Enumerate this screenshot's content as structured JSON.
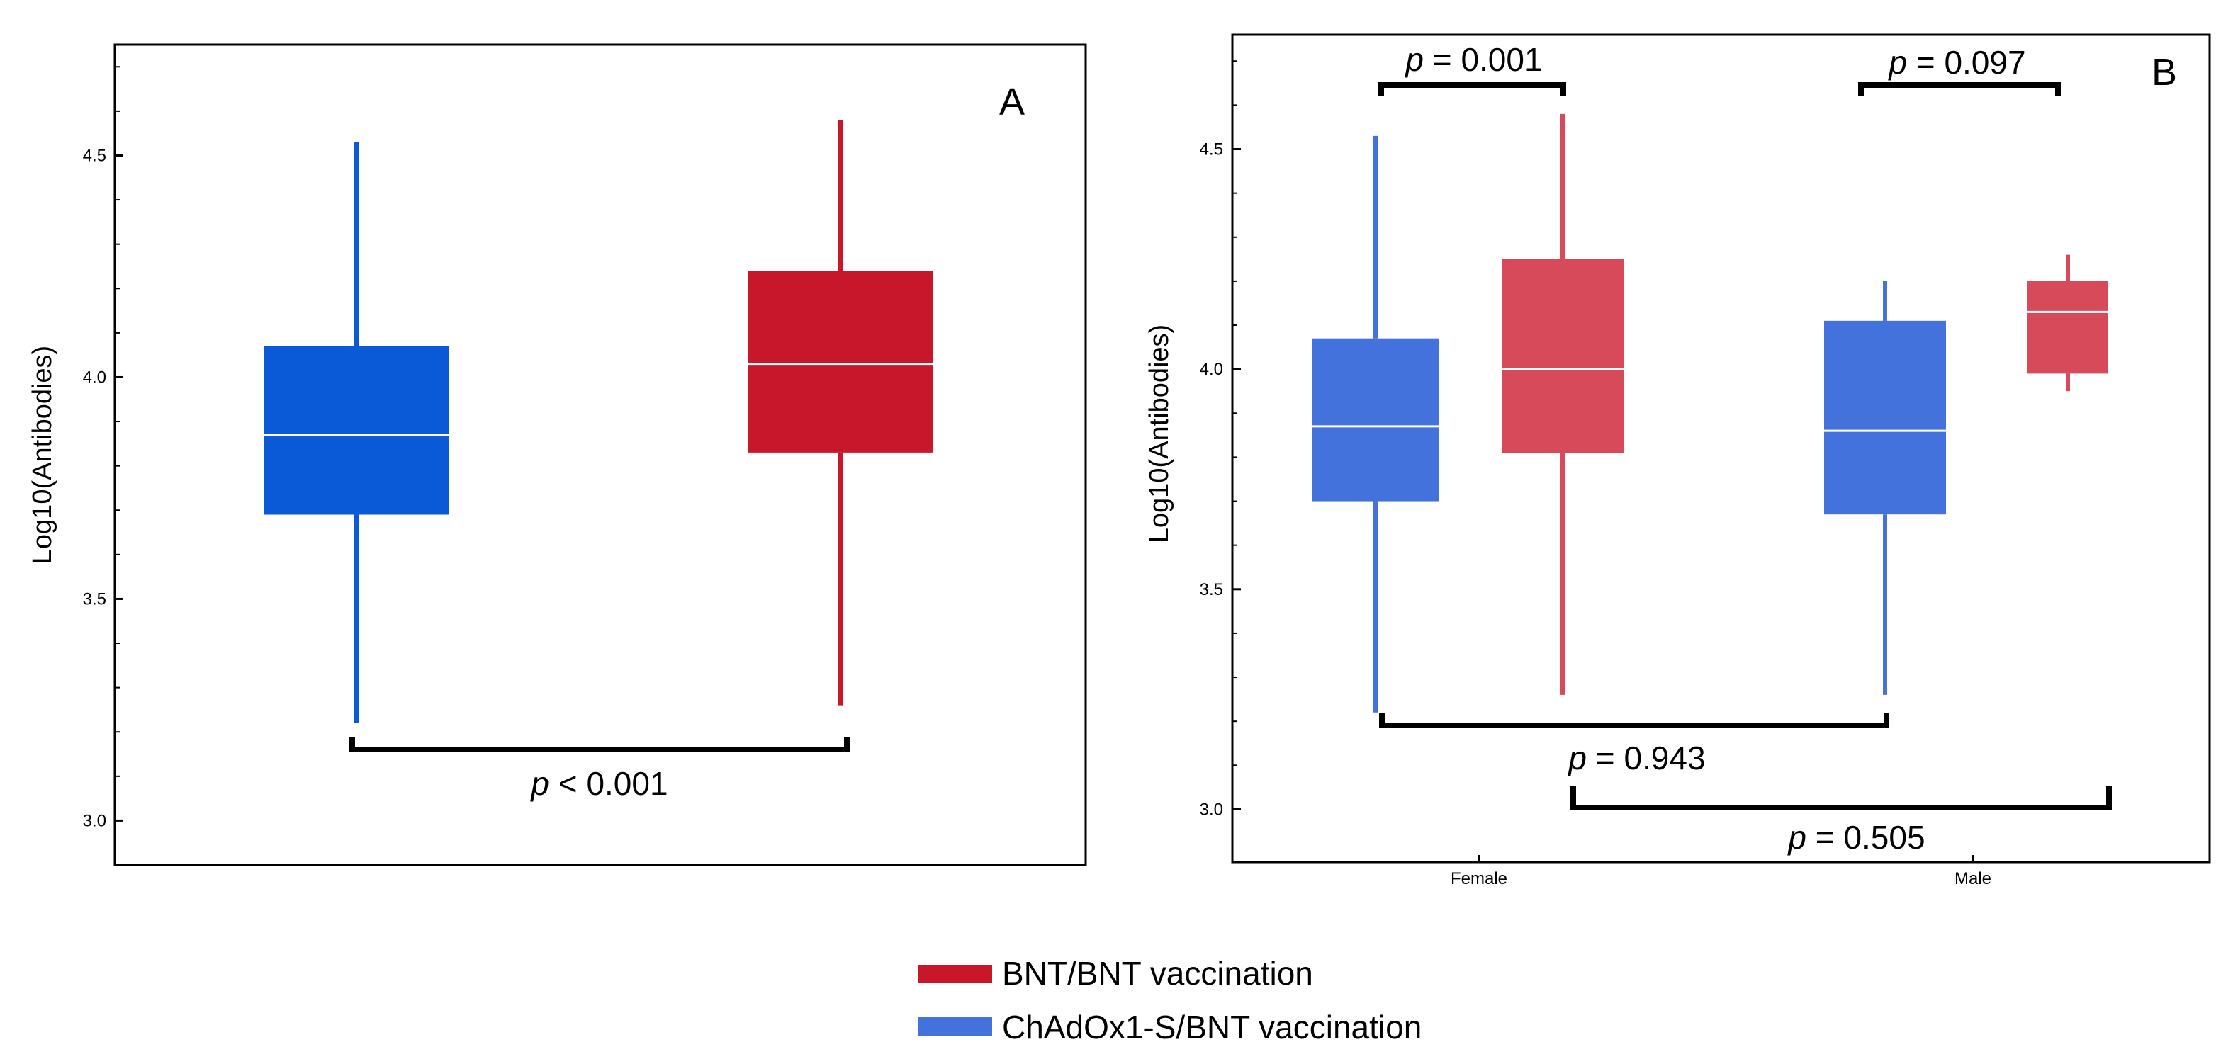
{
  "chart_data": [
    {
      "panel_label": "A",
      "type": "box",
      "ylabel": "Log10(Antibodies)",
      "ylim": [
        2.9,
        4.75
      ],
      "yticks": [
        "3.0",
        "3.5",
        "4.0",
        "4.5"
      ],
      "series": [
        {
          "name": "ChAdOx1-S/BNT vaccination",
          "color": "#0a5ad8",
          "min": 3.22,
          "q1": 3.69,
          "median": 3.87,
          "q3": 4.07,
          "max": 4.53
        },
        {
          "name": "BNT/BNT vaccination",
          "color": "#c8172b",
          "min": 3.26,
          "q1": 3.83,
          "median": 4.03,
          "q3": 4.24,
          "max": 4.58
        }
      ],
      "annotations": [
        {
          "p_label": "p",
          "text": " < 0.001"
        }
      ]
    },
    {
      "panel_label": "B",
      "type": "box",
      "ylabel": "Log10(Antibodies)",
      "ylim": [
        2.88,
        4.76
      ],
      "yticks": [
        "3.0",
        "3.5",
        "4.0",
        "4.5"
      ],
      "categories": [
        "Female",
        "Male"
      ],
      "series": [
        {
          "name": "ChAdOx1-S/BNT vaccination",
          "color": "#4472dc",
          "boxes": [
            {
              "min": 3.22,
              "q1": 3.7,
              "median": 3.87,
              "q3": 4.07,
              "max": 4.53
            },
            {
              "min": 3.26,
              "q1": 3.67,
              "median": 3.86,
              "q3": 4.11,
              "max": 4.2
            }
          ]
        },
        {
          "name": "BNT/BNT vaccination",
          "color": "#d64a5a",
          "boxes": [
            {
              "min": 3.26,
              "q1": 3.81,
              "median": 4.0,
              "q3": 4.25,
              "max": 4.58
            },
            {
              "min": 3.95,
              "q1": 3.99,
              "median": 4.13,
              "q3": 4.2,
              "max": 4.26
            }
          ]
        }
      ],
      "annotations": [
        {
          "p_label": "p",
          "text": " = 0.001"
        },
        {
          "p_label": "p",
          "text": " = 0.097"
        },
        {
          "p_label": "p",
          "text": " = 0.943"
        },
        {
          "p_label": "p",
          "text": " = 0.505"
        }
      ]
    }
  ],
  "legend": [
    {
      "label": "BNT/BNT vaccination",
      "color": "#c8172b"
    },
    {
      "label": "ChAdOx1-S/BNT vaccination",
      "color": "#4472dc"
    }
  ]
}
